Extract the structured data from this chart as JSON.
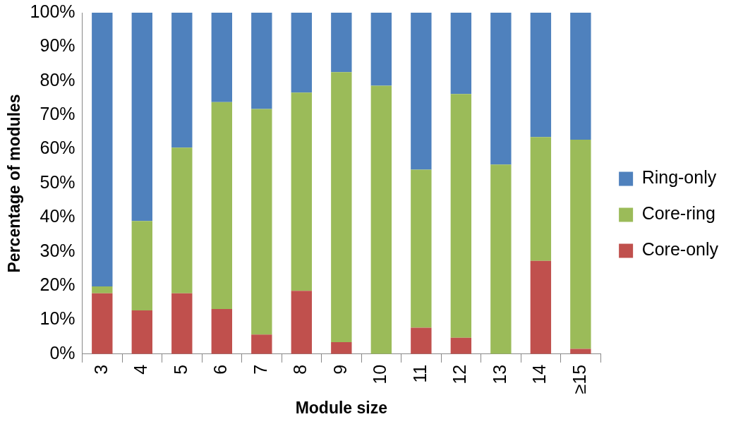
{
  "chart_data": {
    "type": "bar",
    "stacked": true,
    "xlabel": "Module size",
    "ylabel": "Percentage of modules",
    "categories": [
      "3",
      "4",
      "5",
      "6",
      "7",
      "8",
      "9",
      "10",
      "11",
      "12",
      "13",
      "14",
      "≥15"
    ],
    "series": [
      {
        "name": "Core-only",
        "color": "#c0504d",
        "values": [
          17.8,
          12.8,
          17.8,
          13.2,
          5.7,
          18.5,
          3.5,
          0,
          7.7,
          4.8,
          0,
          27.3,
          1.5
        ]
      },
      {
        "name": "Core-ring",
        "color": "#9bbb59",
        "values": [
          2,
          26.2,
          42.7,
          60.6,
          66.1,
          58.1,
          79.1,
          78.6,
          46.3,
          71.4,
          55.5,
          36.3,
          61.3
        ]
      },
      {
        "name": "Ring-only",
        "color": "#4f81bd",
        "values": [
          80.2,
          61,
          39.5,
          26.2,
          28.2,
          23.4,
          17.4,
          21.4,
          46,
          23.8,
          44.5,
          36.4,
          37.2
        ]
      }
    ],
    "ylim": [
      0,
      100
    ],
    "yticks": [
      {
        "value": 0,
        "label": "0%"
      },
      {
        "value": 10,
        "label": "10%"
      },
      {
        "value": 20,
        "label": "20%"
      },
      {
        "value": 30,
        "label": "30%"
      },
      {
        "value": 40,
        "label": "40%"
      },
      {
        "value": 50,
        "label": "50%"
      },
      {
        "value": 60,
        "label": "60%"
      },
      {
        "value": 70,
        "label": "70%"
      },
      {
        "value": 80,
        "label": "80%"
      },
      {
        "value": 90,
        "label": "90%"
      },
      {
        "value": 100,
        "label": "100%"
      }
    ],
    "grid": false,
    "legend": "right"
  }
}
